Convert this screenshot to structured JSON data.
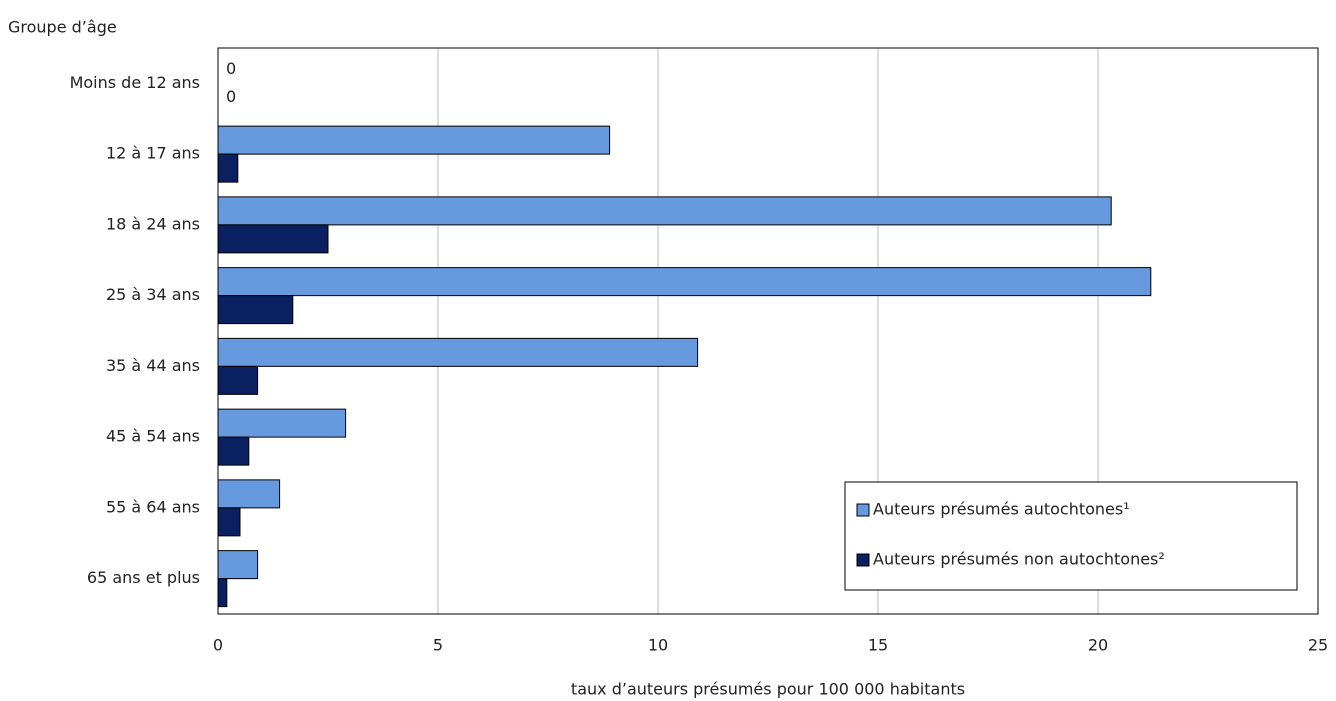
{
  "chart_data": {
    "type": "bar",
    "orientation": "horizontal",
    "y_axis_title": "Groupe d’âge",
    "x_axis_title": "taux d’auteurs présumés pour 100 000 habitants",
    "categories": [
      "Moins de 12 ans",
      "12 à 17 ans",
      "18 à 24 ans",
      "25 à 34 ans",
      "35 à 44 ans",
      "45 à 54 ans",
      "55 à 64 ans",
      "65 ans et plus"
    ],
    "series": [
      {
        "name": "Auteurs présumés autochtones¹",
        "color": "#6699dd",
        "values": [
          0,
          8.9,
          20.3,
          21.2,
          10.9,
          2.9,
          1.4,
          0.9
        ]
      },
      {
        "name": "Auteurs présumés non autochtones²",
        "color": "#0a2060",
        "values": [
          0,
          0.45,
          2.5,
          1.7,
          0.9,
          0.7,
          0.5,
          0.2
        ]
      }
    ],
    "xlim": [
      0,
      25
    ],
    "xticks": [
      0,
      5,
      10,
      15,
      20,
      25
    ],
    "grid": true,
    "legend": "lower right"
  }
}
